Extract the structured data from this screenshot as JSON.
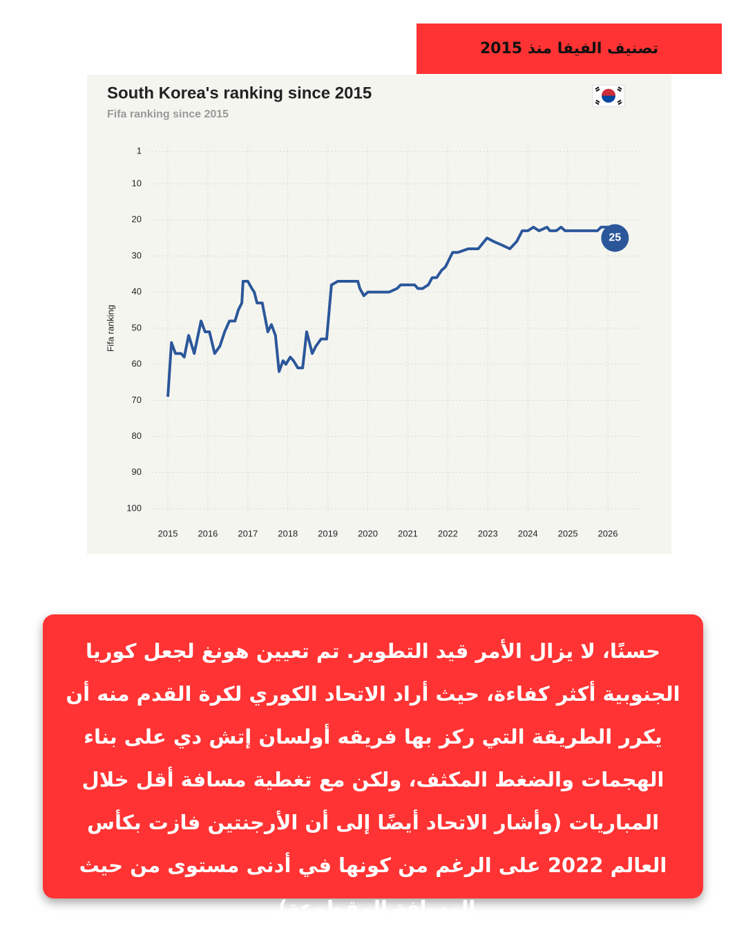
{
  "header": {
    "title": "تصنيف الفيفا منذ 2015"
  },
  "chart_data": {
    "type": "line",
    "title": "South Korea's ranking since 2015",
    "subtitle": "Fifa ranking since 2015",
    "y_label": "Fifa ranking",
    "x": [
      2015.0,
      2015.09,
      2015.19,
      2015.33,
      2015.41,
      2015.52,
      2015.66,
      2015.83,
      2015.93,
      2016.04,
      2016.17,
      2016.3,
      2016.42,
      2016.54,
      2016.68,
      2016.76,
      2016.85,
      2016.88,
      2017.0,
      2017.1,
      2017.16,
      2017.23,
      2017.36,
      2017.5,
      2017.59,
      2017.69,
      2017.78,
      2017.88,
      2017.95,
      2018.06,
      2018.14,
      2018.25,
      2018.37,
      2018.47,
      2018.61,
      2018.7,
      2018.83,
      2018.97,
      2019.09,
      2019.25,
      2019.75,
      2019.8,
      2019.9,
      2020.0,
      2020.53,
      2020.73,
      2020.82,
      2021.17,
      2021.25,
      2021.37,
      2021.51,
      2021.61,
      2021.72,
      2021.84,
      2021.94,
      2022.03,
      2022.12,
      2022.25,
      2022.51,
      2022.76,
      2022.98,
      2023.15,
      2023.36,
      2023.55,
      2023.72,
      2023.86,
      2024.0,
      2024.14,
      2024.28,
      2024.48,
      2024.55,
      2024.71,
      2024.83,
      2024.93,
      2025.74,
      2025.83,
      2026.04
    ],
    "series": [
      {
        "name": "South Korea",
        "color": "#2b579a",
        "values": [
          69,
          54,
          57,
          57,
          58,
          52,
          57,
          48,
          51,
          51,
          57,
          55,
          51,
          48,
          48,
          45,
          43,
          37,
          37,
          39,
          40,
          43,
          43,
          51,
          49,
          52,
          62,
          59,
          60,
          58,
          59,
          61,
          61,
          51,
          57,
          55,
          53,
          53,
          38,
          37,
          37,
          39,
          41,
          40,
          40,
          39,
          38,
          38,
          39,
          39,
          38,
          36,
          36,
          34,
          33,
          31,
          29,
          29,
          28,
          28,
          25,
          26,
          27,
          28,
          26,
          23,
          23,
          22,
          23,
          22,
          23,
          23,
          22,
          23,
          23,
          22,
          22
        ]
      }
    ],
    "annotation": 25,
    "xlim": [
      2015,
      2026
    ],
    "xticks": [
      2015,
      2016,
      2017,
      2018,
      2019,
      2020,
      2021,
      2022,
      2023,
      2024,
      2025,
      2026
    ],
    "ylim": [
      100,
      1
    ],
    "yticks": [
      1,
      10,
      20,
      30,
      40,
      50,
      60,
      70,
      80,
      90,
      100
    ],
    "grid": true
  },
  "body": {
    "text": "حسنًا، لا يزال الأمر قيد التطوير. تم تعيين هونغ لجعل كوريا الجنوبية أكثر كفاءة، حيث أراد الاتحاد الكوري لكرة القدم منه أن يكرر الطريقة التي ركز بها فريقه أولسان إتش دي على بناء الهجمات والضغط المكثف، ولكن مع تغطية مسافة أقل خلال المباريات (وأشار الاتحاد أيضًا إلى أن الأرجنتين فازت بكأس العالم 2022 على الرغم من كونها في أدنى مستوى من حيث المسافة المقطوعة)."
  }
}
